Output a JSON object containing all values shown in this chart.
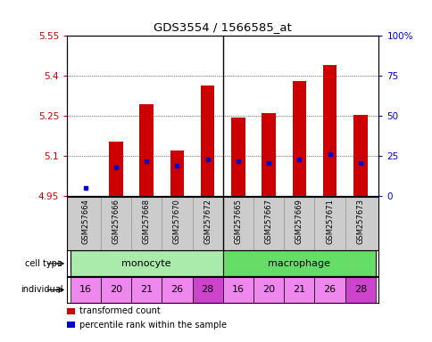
{
  "title": "GDS3554 / 1566585_at",
  "samples": [
    "GSM257664",
    "GSM257666",
    "GSM257668",
    "GSM257670",
    "GSM257672",
    "GSM257665",
    "GSM257667",
    "GSM257669",
    "GSM257671",
    "GSM257673"
  ],
  "individuals": [
    "16",
    "20",
    "21",
    "26",
    "28",
    "16",
    "20",
    "21",
    "26",
    "28"
  ],
  "transformed_counts": [
    4.949,
    5.155,
    5.295,
    5.12,
    5.365,
    5.245,
    5.26,
    5.38,
    5.44,
    5.255
  ],
  "percentile_ranks": [
    5,
    18,
    22,
    19,
    23,
    22,
    21,
    23,
    26,
    21
  ],
  "ylim_left": [
    4.95,
    5.55
  ],
  "ylim_right": [
    0,
    100
  ],
  "yticks_left": [
    4.95,
    5.1,
    5.25,
    5.4,
    5.55
  ],
  "yticks_right": [
    0,
    25,
    50,
    75,
    100
  ],
  "bar_color": "#cc0000",
  "dot_color": "#0000cc",
  "bar_width": 0.45,
  "monocyte_color": "#aaeaaa",
  "macrophage_color": "#66dd66",
  "individual_color": "#ee88ee",
  "individual_color_28": "#cc44cc",
  "background_color": "#ffffff",
  "sample_area_color": "#cccccc",
  "n_monocyte": 5,
  "n_total": 10
}
